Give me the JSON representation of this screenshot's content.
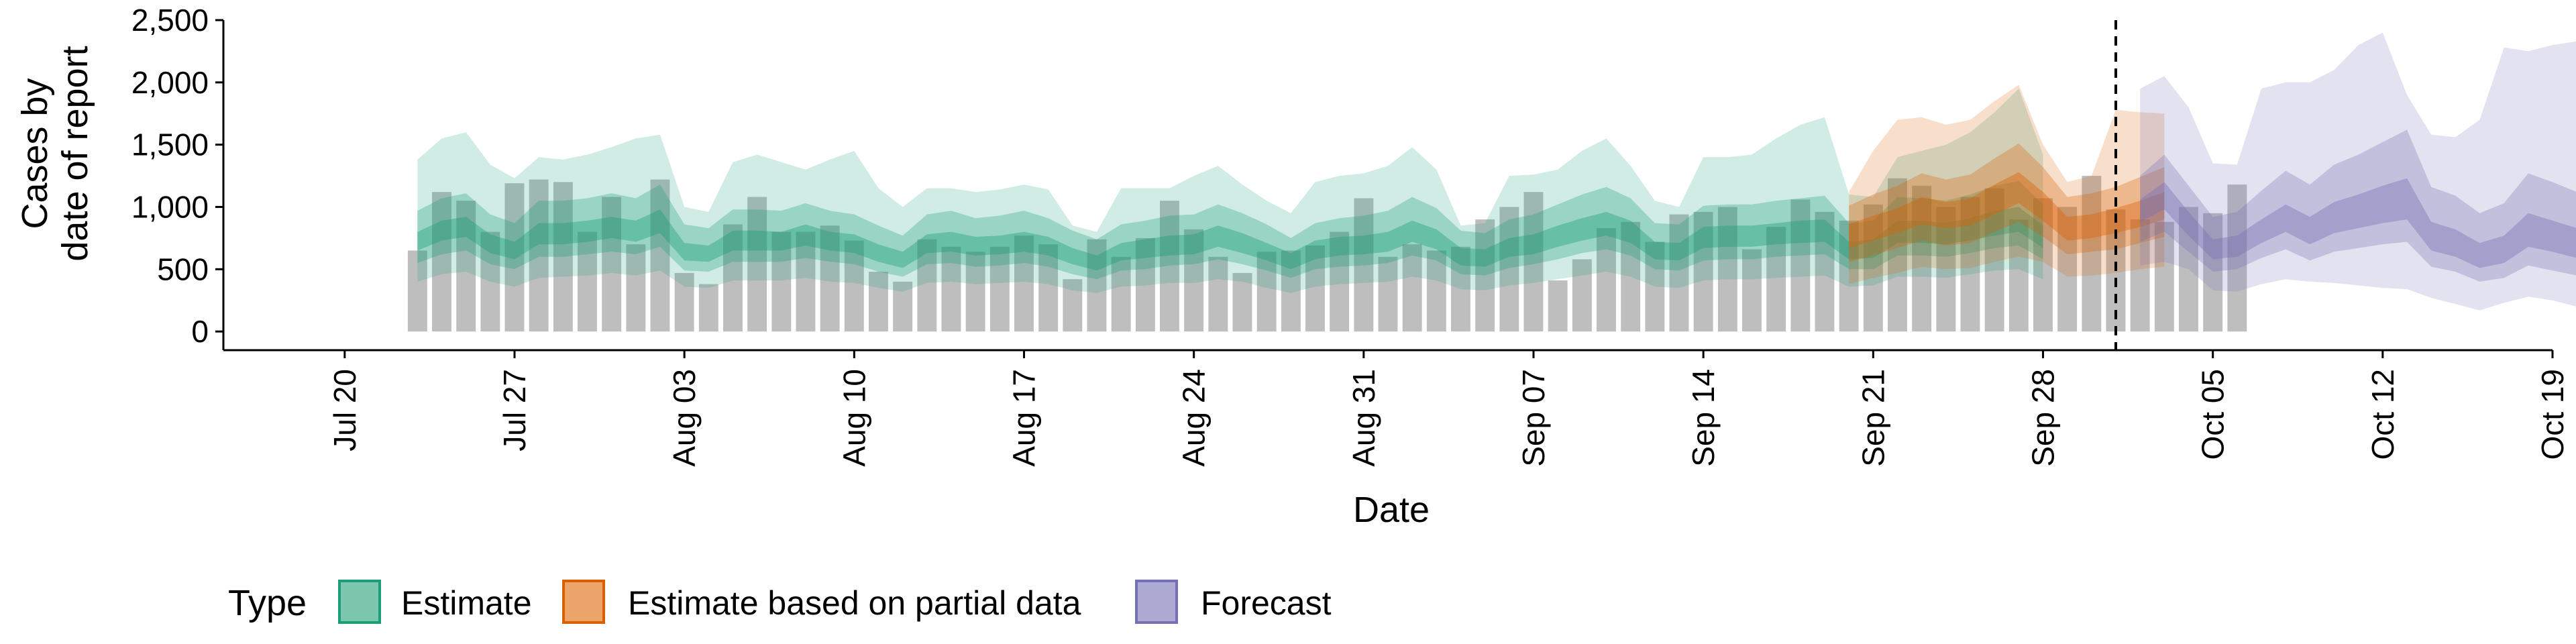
{
  "chart_data": {
    "type": "area",
    "xlabel": "Date",
    "ylabel_lines": [
      "Cases by",
      "date of report"
    ],
    "y_ticks": [
      0,
      500,
      1000,
      1500,
      2000,
      2500
    ],
    "y_tick_labels": [
      "0",
      "500",
      "1,000",
      "1,500",
      "2,000",
      "2,500"
    ],
    "ylim": [
      -150,
      2500
    ],
    "xlim": [
      "2020-07-15",
      "2020-10-19"
    ],
    "x_ticks": [
      "2020-07-20",
      "2020-07-27",
      "2020-08-03",
      "2020-08-10",
      "2020-08-17",
      "2020-08-24",
      "2020-08-31",
      "2020-09-07",
      "2020-09-14",
      "2020-09-21",
      "2020-09-28",
      "2020-10-05",
      "2020-10-12",
      "2020-10-19"
    ],
    "x_tick_labels": [
      "Jul 20",
      "Jul 27",
      "Aug 03",
      "Aug 10",
      "Aug 17",
      "Aug 24",
      "Aug 31",
      "Sep 07",
      "Sep 14",
      "Sep 21",
      "Sep 28",
      "Oct 05",
      "Oct 12",
      "Oct 19"
    ],
    "forecast_date": "2020-10-01",
    "legend_position": "bottom",
    "legend": {
      "title": "Type",
      "items": [
        {
          "label": "Estimate",
          "fill": "#7CC6AE",
          "stroke": "#1B9E77"
        },
        {
          "label": "Estimate based on partial data",
          "fill": "#EBA56A",
          "stroke": "#D95F02"
        },
        {
          "label": "Forecast",
          "fill": "#ACAAD3",
          "stroke": "#7570B3"
        }
      ]
    },
    "colors": {
      "estimate": "#1B9E77",
      "partial": "#D95F02",
      "forecast": "#7570B3",
      "bars": "#BEBEBE"
    },
    "reported_cases": {
      "start": "2020-07-23",
      "values": [
        650,
        1120,
        1050,
        800,
        1190,
        1220,
        1200,
        800,
        1080,
        700,
        1220,
        470,
        380,
        860,
        1080,
        800,
        800,
        850,
        730,
        480,
        400,
        740,
        680,
        640,
        680,
        770,
        700,
        420,
        740,
        600,
        750,
        1050,
        820,
        600,
        470,
        640,
        650,
        690,
        800,
        1070,
        600,
        700,
        650,
        680,
        900,
        1000,
        1120,
        410,
        580,
        830,
        880,
        720,
        940,
        960,
        1000,
        660,
        840,
        1060,
        960,
        890,
        1020,
        1230,
        1170,
        1000,
        1080,
        1150,
        900,
        1070,
        1000,
        1250,
        980,
        900,
        880,
        1000,
        950,
        1180
      ]
    },
    "estimate": {
      "start": "2020-07-23",
      "median": [
        720,
        800,
        830,
        700,
        650,
        780,
        780,
        800,
        830,
        800,
        880,
        640,
        620,
        730,
        730,
        720,
        770,
        720,
        700,
        630,
        570,
        700,
        720,
        680,
        690,
        720,
        680,
        600,
        550,
        640,
        660,
        690,
        700,
        760,
        710,
        640,
        560,
        650,
        680,
        690,
        720,
        800,
        740,
        600,
        590,
        670,
        700,
        760,
        820,
        860,
        800,
        650,
        640,
        750,
        760,
        760,
        780,
        800,
        810,
        650,
        660,
        800,
        800,
        780,
        820,
        870,
        900,
        760
      ],
      "q25": [
        650,
        730,
        760,
        630,
        580,
        700,
        700,
        720,
        750,
        720,
        790,
        570,
        560,
        650,
        650,
        650,
        690,
        650,
        630,
        560,
        510,
        630,
        640,
        610,
        620,
        640,
        610,
        540,
        490,
        570,
        590,
        610,
        620,
        680,
        630,
        570,
        500,
        580,
        610,
        620,
        640,
        720,
        660,
        530,
        520,
        600,
        620,
        680,
        730,
        770,
        710,
        580,
        570,
        670,
        680,
        680,
        700,
        710,
        720,
        580,
        590,
        710,
        710,
        700,
        730,
        770,
        800,
        670
      ],
      "q75": [
        800,
        890,
        920,
        780,
        720,
        870,
        870,
        890,
        920,
        890,
        980,
        710,
        690,
        810,
        810,
        800,
        860,
        800,
        780,
        700,
        640,
        780,
        800,
        760,
        770,
        800,
        760,
        670,
        610,
        710,
        740,
        770,
        780,
        850,
        790,
        710,
        630,
        730,
        760,
        770,
        800,
        890,
        820,
        670,
        660,
        750,
        780,
        850,
        910,
        960,
        890,
        720,
        710,
        840,
        850,
        850,
        870,
        890,
        900,
        720,
        740,
        890,
        890,
        870,
        910,
        970,
        1000,
        850
      ],
      "q05": [
        550,
        620,
        650,
        540,
        500,
        600,
        600,
        620,
        640,
        620,
        680,
        490,
        480,
        560,
        560,
        560,
        590,
        560,
        540,
        480,
        440,
        540,
        550,
        520,
        530,
        550,
        520,
        460,
        420,
        490,
        500,
        530,
        540,
        580,
        540,
        490,
        430,
        500,
        520,
        530,
        550,
        610,
        570,
        460,
        450,
        510,
        540,
        580,
        630,
        660,
        610,
        500,
        490,
        570,
        580,
        580,
        600,
        610,
        620,
        500,
        500,
        610,
        610,
        600,
        630,
        670,
        690,
        580
      ],
      "q95": [
        970,
        1070,
        1110,
        940,
        870,
        1050,
        1050,
        1070,
        1110,
        1070,
        1180,
        860,
        830,
        980,
        980,
        970,
        1030,
        970,
        940,
        850,
        770,
        940,
        970,
        910,
        930,
        970,
        910,
        810,
        740,
        860,
        890,
        930,
        940,
        1020,
        950,
        860,
        750,
        870,
        910,
        930,
        970,
        1080,
        990,
        810,
        790,
        900,
        940,
        1020,
        1100,
        1160,
        1070,
        870,
        860,
        1010,
        1020,
        1020,
        1050,
        1070,
        1090,
        870,
        890,
        1080,
        1070,
        1050,
        1100,
        1170,
        1210,
        1020
      ],
      "lower90": [
        400,
        460,
        480,
        400,
        360,
        430,
        440,
        450,
        470,
        450,
        490,
        360,
        350,
        410,
        410,
        410,
        430,
        400,
        390,
        350,
        320,
        390,
        400,
        380,
        390,
        400,
        380,
        330,
        310,
        360,
        370,
        390,
        390,
        420,
        400,
        350,
        310,
        360,
        380,
        390,
        400,
        440,
        410,
        340,
        330,
        370,
        390,
        420,
        450,
        480,
        440,
        360,
        350,
        410,
        420,
        420,
        430,
        440,
        450,
        360,
        370,
        440,
        440,
        430,
        460,
        490,
        500,
        420
      ],
      "upper90": [
        1380,
        1550,
        1600,
        1340,
        1230,
        1400,
        1380,
        1420,
        1480,
        1550,
        1580,
        1000,
        960,
        1360,
        1420,
        1360,
        1300,
        1380,
        1450,
        1150,
        1000,
        1150,
        1150,
        1120,
        1140,
        1180,
        1140,
        850,
        800,
        1150,
        1150,
        1150,
        1250,
        1330,
        1180,
        1050,
        950,
        1200,
        1250,
        1270,
        1330,
        1480,
        1300,
        850,
        870,
        1250,
        1260,
        1300,
        1450,
        1550,
        1330,
        1050,
        1000,
        1400,
        1400,
        1420,
        1550,
        1660,
        1720,
        1100,
        1080,
        1400,
        1450,
        1500,
        1600,
        1760,
        1950,
        1420
      ]
    },
    "partial": {
      "start": "2020-09-20",
      "median": [
        760,
        820,
        880,
        960,
        920,
        950,
        1050,
        1150,
        1000,
        820,
        840,
        880,
        940,
        1000
      ],
      "q25": [
        670,
        730,
        790,
        860,
        830,
        850,
        940,
        1030,
        890,
        730,
        750,
        790,
        840,
        900
      ],
      "q75": [
        860,
        930,
        990,
        1080,
        1040,
        1070,
        1180,
        1280,
        1120,
        920,
        940,
        990,
        1050,
        1120
      ],
      "q05": [
        560,
        610,
        670,
        730,
        690,
        710,
        800,
        880,
        760,
        620,
        640,
        660,
        710,
        760
      ],
      "q95": [
        1010,
        1100,
        1170,
        1270,
        1220,
        1260,
        1390,
        1510,
        1320,
        1080,
        1110,
        1160,
        1240,
        1320
      ],
      "lower90": [
        380,
        430,
        470,
        520,
        500,
        510,
        560,
        600,
        560,
        440,
        450,
        470,
        500,
        520
      ],
      "upper90": [
        1120,
        1450,
        1700,
        1720,
        1660,
        1700,
        1850,
        1980,
        1500,
        1200,
        1250,
        1780,
        1760,
        1750
      ]
    },
    "forecast": {
      "start": "2020-10-02",
      "median": [
        960,
        1080,
        850,
        650,
        680,
        800,
        900,
        800,
        900,
        950,
        1000,
        1050,
        750,
        700,
        600,
        650,
        800,
        750,
        700,
        680
      ],
      "q25": [
        880,
        980,
        770,
        580,
        600,
        710,
        800,
        700,
        790,
        830,
        870,
        900,
        650,
        600,
        510,
        550,
        680,
        640,
        590,
        570
      ],
      "q75": [
        1060,
        1200,
        960,
        740,
        770,
        900,
        1020,
        920,
        1040,
        1100,
        1170,
        1230,
        880,
        820,
        710,
        770,
        950,
        890,
        830,
        810
      ],
      "q05": [
        720,
        800,
        640,
        480,
        500,
        590,
        660,
        570,
        640,
        670,
        700,
        720,
        520,
        480,
        400,
        430,
        530,
        490,
        450,
        430
      ],
      "q95": [
        1250,
        1420,
        1170,
        920,
        960,
        1130,
        1290,
        1180,
        1340,
        1420,
        1520,
        1620,
        1160,
        1090,
        950,
        1030,
        1270,
        1200,
        1120,
        1100
      ],
      "lower90": [
        530,
        560,
        500,
        330,
        320,
        380,
        420,
        400,
        390,
        370,
        350,
        340,
        270,
        220,
        170,
        230,
        280,
        250,
        200,
        150
      ],
      "upper90": [
        1950,
        2050,
        1800,
        1350,
        1340,
        1950,
        2000,
        2000,
        2100,
        2300,
        2400,
        1900,
        1580,
        1560,
        1700,
        2280,
        2250,
        2300,
        2330,
        2330
      ]
    }
  }
}
